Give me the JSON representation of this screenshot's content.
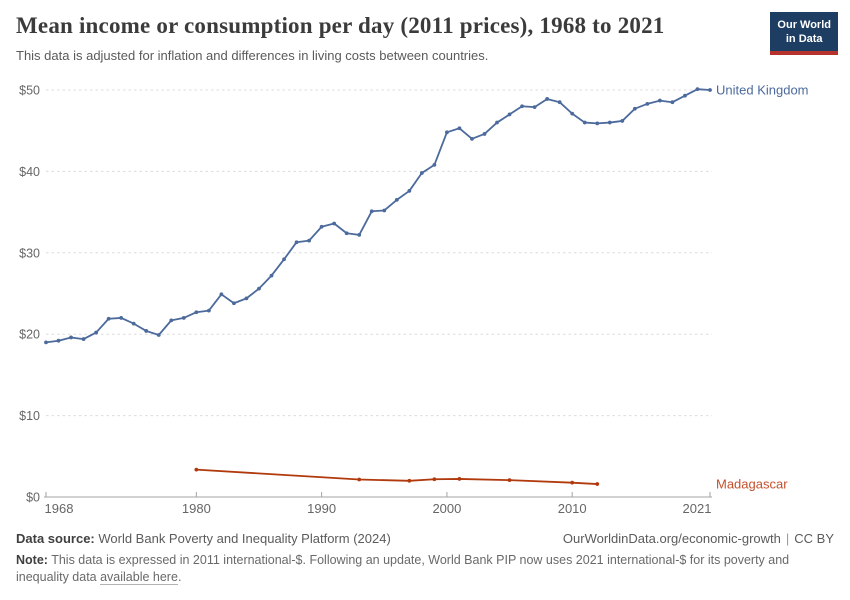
{
  "header": {
    "title": "Mean income or consumption per day (2011 prices), 1968 to 2021",
    "subtitle": "This data is adjusted for inflation and differences in living costs between countries.",
    "logo": {
      "line1": "Our World",
      "line2": "in Data",
      "bg_color": "#1d3d63",
      "accent_color": "#b5332c"
    }
  },
  "chart_data": {
    "type": "line",
    "title": "Mean income or consumption per day (2011 prices), 1968 to 2021",
    "xlabel": "",
    "ylabel": "",
    "xlim": [
      1968,
      2021
    ],
    "ylim": [
      0,
      50
    ],
    "grid": "horizontal-dashed",
    "legend_position": "right-end-labels",
    "y_ticks": [
      "$0",
      "$10",
      "$20",
      "$30",
      "$40",
      "$50"
    ],
    "x_ticks": [
      1968,
      1980,
      1990,
      2000,
      2010,
      2021
    ],
    "series": [
      {
        "id": "united-kingdom",
        "name": "United Kingdom",
        "color": "#4c6a9c",
        "label_color": "#4c6a9c",
        "points": [
          [
            1968,
            19.0
          ],
          [
            1969,
            19.2
          ],
          [
            1970,
            19.6
          ],
          [
            1971,
            19.4
          ],
          [
            1972,
            20.2
          ],
          [
            1973,
            21.9
          ],
          [
            1974,
            22.0
          ],
          [
            1975,
            21.3
          ],
          [
            1976,
            20.4
          ],
          [
            1977,
            19.9
          ],
          [
            1978,
            21.7
          ],
          [
            1979,
            22.0
          ],
          [
            1980,
            22.7
          ],
          [
            1981,
            22.9
          ],
          [
            1982,
            24.9
          ],
          [
            1983,
            23.8
          ],
          [
            1984,
            24.4
          ],
          [
            1985,
            25.6
          ],
          [
            1986,
            27.2
          ],
          [
            1987,
            29.2
          ],
          [
            1988,
            31.3
          ],
          [
            1989,
            31.5
          ],
          [
            1990,
            33.2
          ],
          [
            1991,
            33.6
          ],
          [
            1992,
            32.4
          ],
          [
            1993,
            32.2
          ],
          [
            1994,
            35.1
          ],
          [
            1995,
            35.2
          ],
          [
            1996,
            36.5
          ],
          [
            1997,
            37.6
          ],
          [
            1998,
            39.8
          ],
          [
            1999,
            40.8
          ],
          [
            2000,
            44.8
          ],
          [
            2001,
            45.3
          ],
          [
            2002,
            44.0
          ],
          [
            2003,
            44.6
          ],
          [
            2004,
            46.0
          ],
          [
            2005,
            47.0
          ],
          [
            2006,
            48.0
          ],
          [
            2007,
            47.9
          ],
          [
            2008,
            48.9
          ],
          [
            2009,
            48.5
          ],
          [
            2010,
            47.1
          ],
          [
            2011,
            46.0
          ],
          [
            2012,
            45.9
          ],
          [
            2013,
            46.0
          ],
          [
            2014,
            46.2
          ],
          [
            2015,
            47.7
          ],
          [
            2016,
            48.3
          ],
          [
            2017,
            48.7
          ],
          [
            2018,
            48.5
          ],
          [
            2019,
            49.3
          ],
          [
            2020,
            50.1
          ],
          [
            2021,
            50.0
          ]
        ]
      },
      {
        "id": "madagascar",
        "name": "Madagascar",
        "color": "#b13a0d",
        "label_color": "#c4502c",
        "points": [
          [
            1980,
            3.36
          ],
          [
            1993,
            2.15
          ],
          [
            1997,
            1.99
          ],
          [
            1999,
            2.18
          ],
          [
            2001,
            2.22
          ],
          [
            2005,
            2.07
          ],
          [
            2010,
            1.76
          ],
          [
            2012,
            1.59
          ]
        ]
      }
    ]
  },
  "footer": {
    "datasource_label": "Data source:",
    "datasource_text": " World Bank Poverty and Inequality Platform (2024)",
    "url": "OurWorldinData.org/economic-growth",
    "separator": "|",
    "license": "CC BY",
    "note_label": "Note:",
    "note_body": " This data is expressed in 2011 international-$. Following an update, World Bank PIP now uses 2021 international-$ for its poverty and inequality data ",
    "note_link": "available here",
    "note_suffix": "."
  }
}
